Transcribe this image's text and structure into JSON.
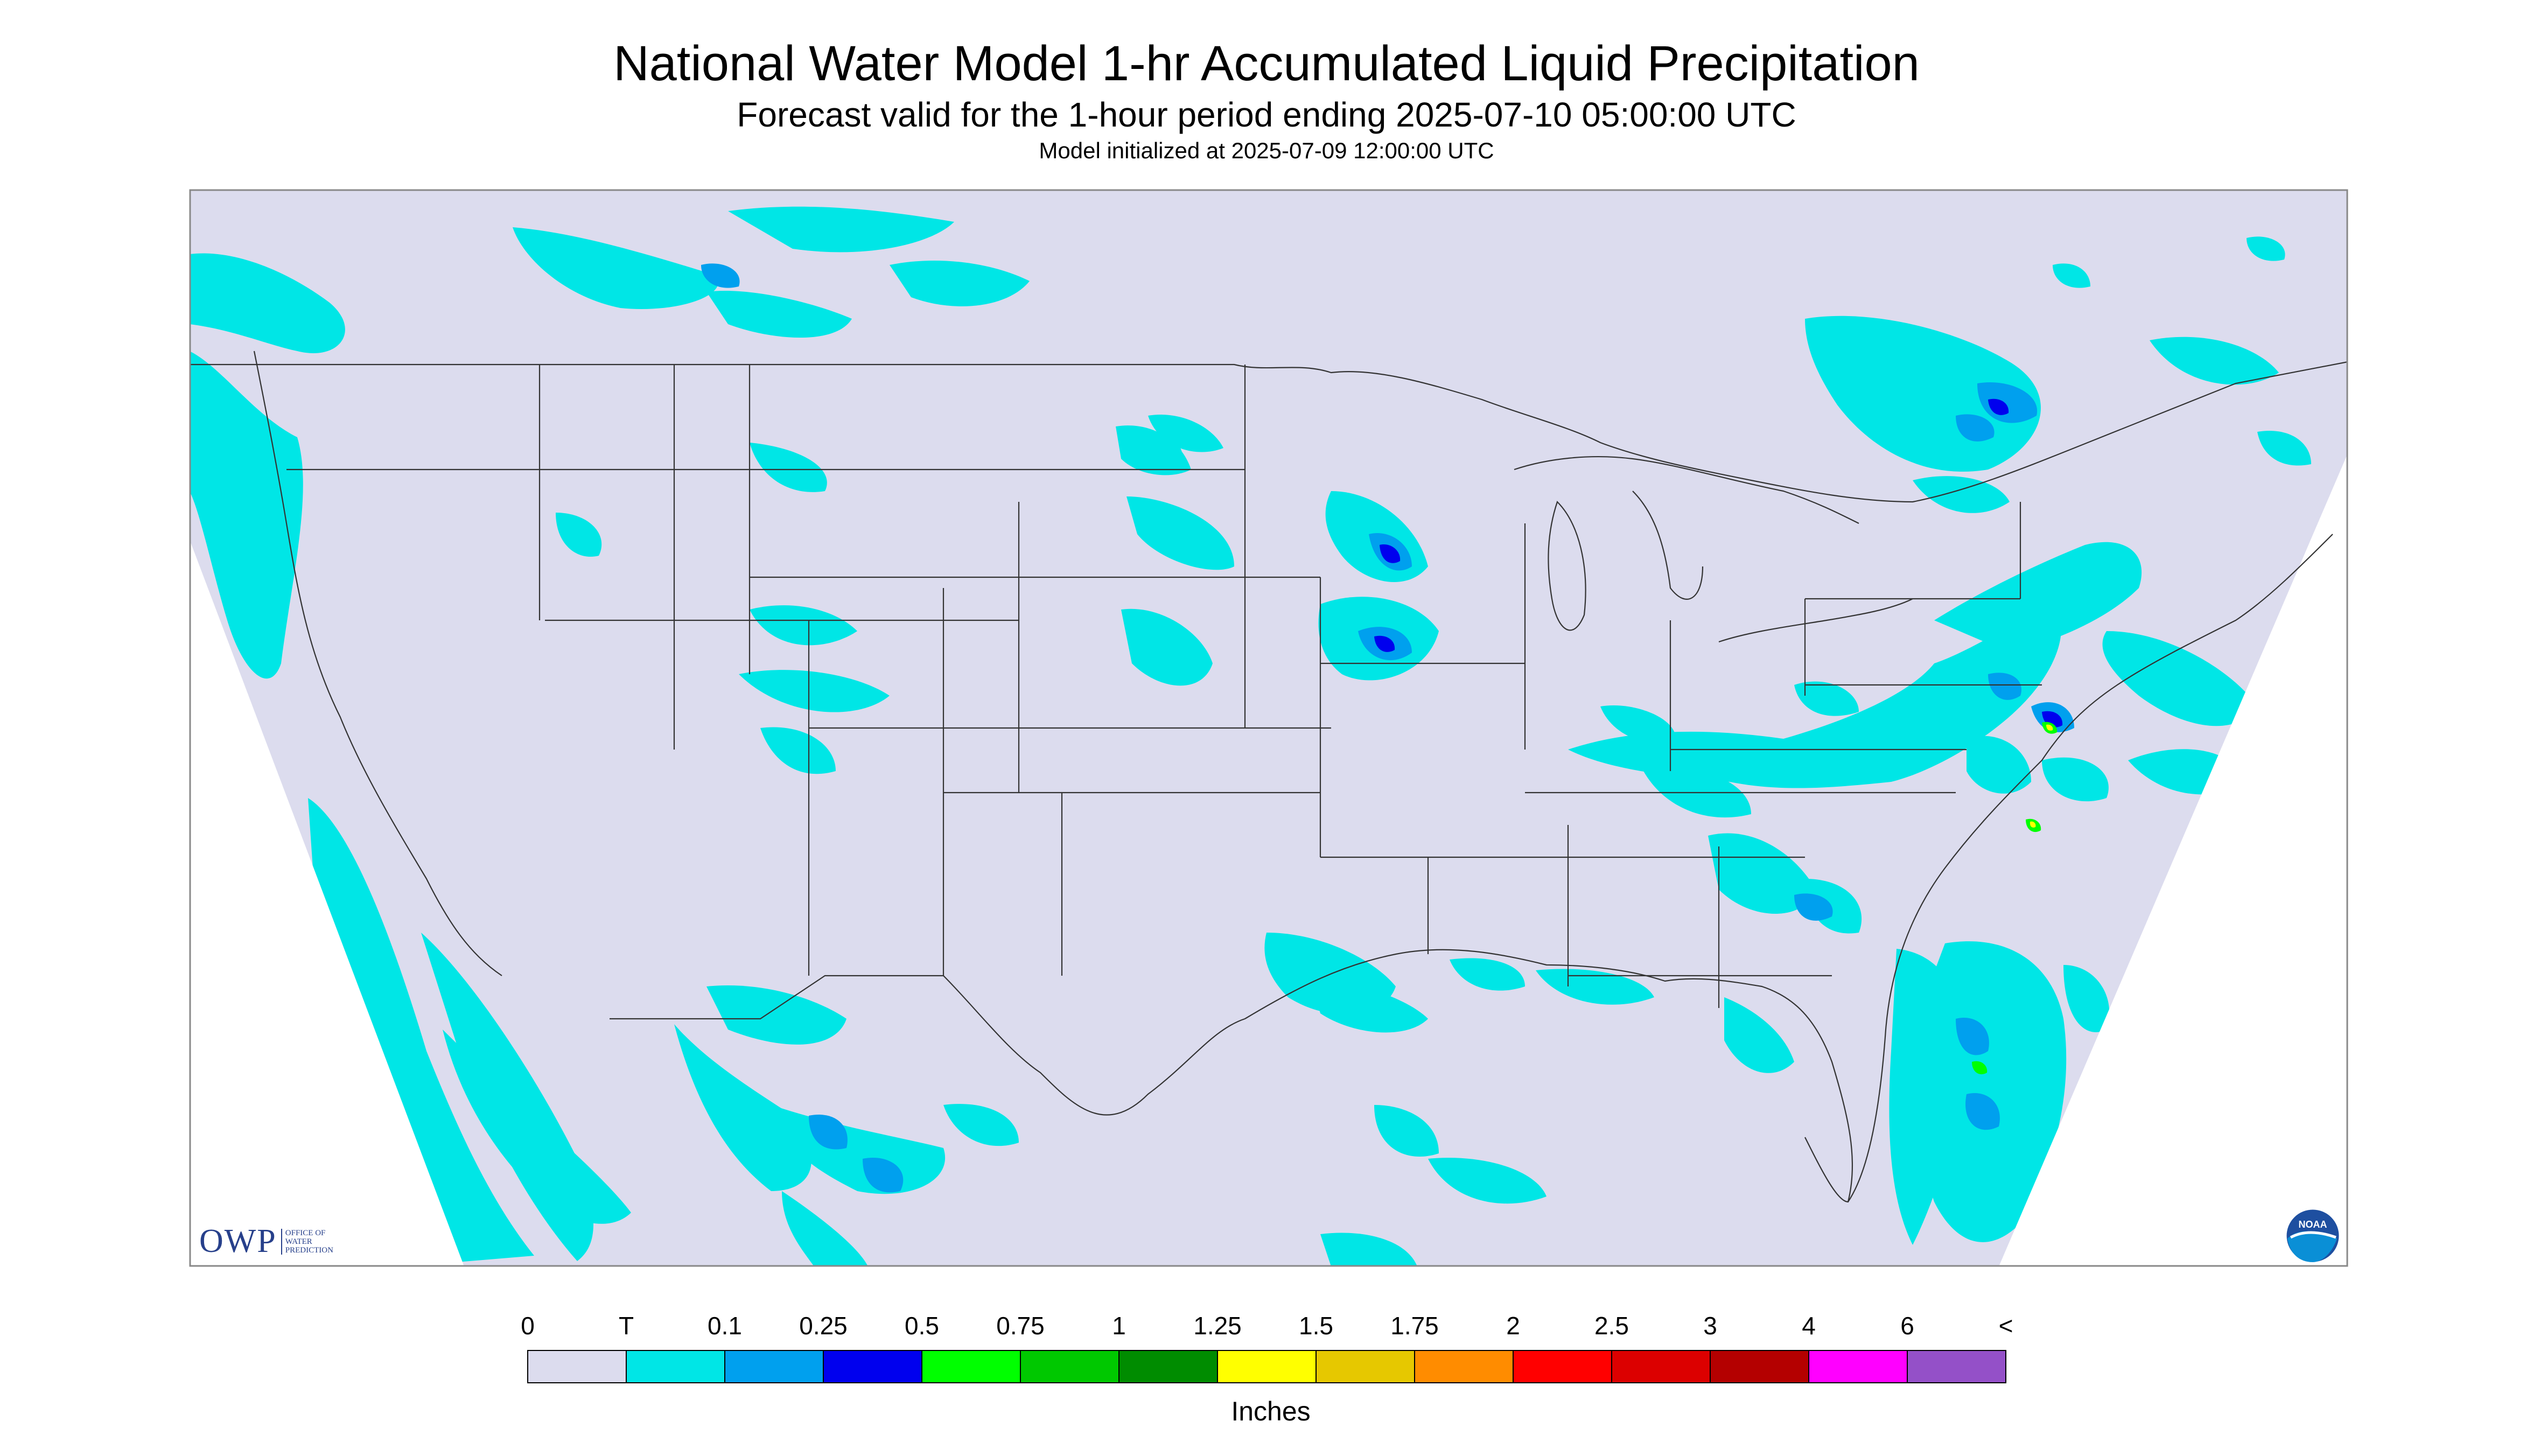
{
  "title": "National Water Model 1-hr Accumulated Liquid Precipitation",
  "subtitle": "Forecast valid for the 1-hour period ending 2025-07-10 05:00:00 UTC",
  "init_text": "Model initialized at 2025-07-09 12:00:00 UTC",
  "legend": {
    "unit_label": "Inches",
    "tick_labels": [
      "0",
      "T",
      "0.1",
      "0.25",
      "0.5",
      "0.75",
      "1",
      "1.25",
      "1.5",
      "1.75",
      "2",
      "2.5",
      "3",
      "4",
      "6",
      "<"
    ],
    "colors": [
      "#dcdcee",
      "#00e6e6",
      "#00a0ee",
      "#0000ee",
      "#00ff00",
      "#00c800",
      "#008c00",
      "#ffff00",
      "#e6c800",
      "#ff8c00",
      "#ff0000",
      "#dc0000",
      "#b40000",
      "#ff00ff",
      "#9450c8"
    ]
  },
  "map": {
    "background_color": "#dcdcee",
    "no_precip_color": "#dcdcee",
    "precip_colors": {
      "trace": "#00e6e6",
      "light": "#00a0ee",
      "moderate": "#0000ee",
      "heavy": "#00ff00",
      "very_heavy": "#ffff00"
    }
  },
  "logos": {
    "owp_text": "OWP",
    "owp_subtext": [
      "OFFICE OF",
      "WATER",
      "PREDICTION"
    ],
    "noaa_text": "NOAA"
  }
}
